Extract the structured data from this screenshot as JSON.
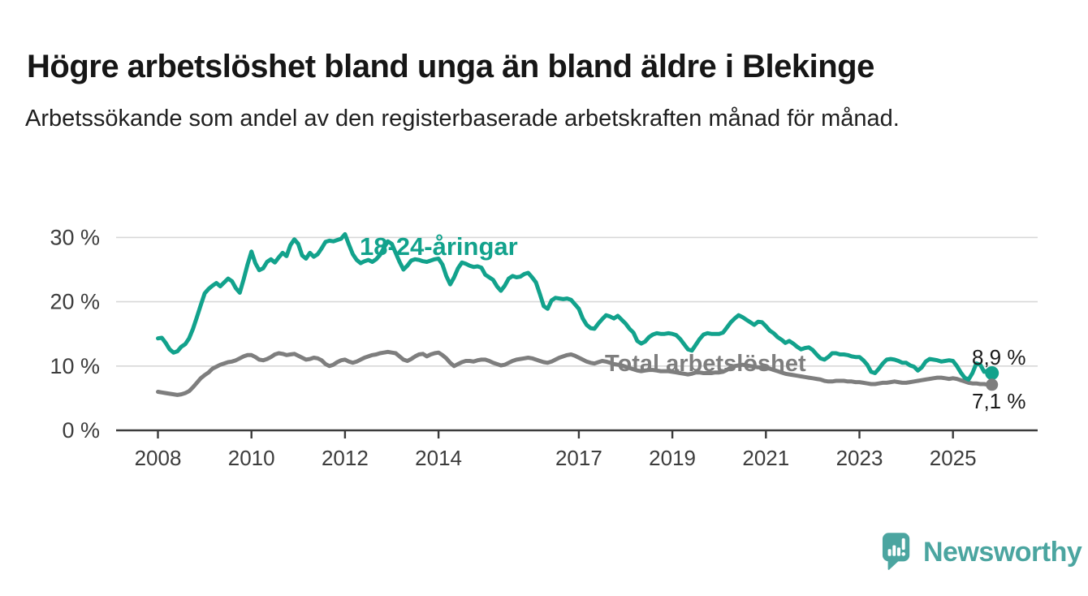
{
  "header": {
    "title": "Högre arbetslöshet bland unga än bland äldre i Blekinge",
    "subtitle": "Arbetssökande som andel av den registerbaserade arbetskraften månad för månad."
  },
  "chart_data": {
    "type": "line",
    "title": "Högre arbetslöshet bland unga än bland äldre i Blekinge",
    "subtitle": "Arbetssökande som andel av den registerbaserade arbetskraften månad för månad.",
    "unit": "%",
    "x_start": {
      "year": 2008,
      "month": 1
    },
    "x_end": {
      "year": 2025,
      "month": 11
    },
    "ylim": [
      0,
      32
    ],
    "grid": "horizontal",
    "y_ticks": [
      {
        "value": 0,
        "label": "0 %"
      },
      {
        "value": 10,
        "label": "10 %"
      },
      {
        "value": 20,
        "label": "20 %"
      },
      {
        "value": 30,
        "label": "30 %"
      }
    ],
    "x_ticks": [
      {
        "value": 2008,
        "label": "2008"
      },
      {
        "value": 2010,
        "label": "2010"
      },
      {
        "value": 2012,
        "label": "2012"
      },
      {
        "value": 2014,
        "label": "2014"
      },
      {
        "value": 2017,
        "label": "2017"
      },
      {
        "value": 2019,
        "label": "2019"
      },
      {
        "value": 2021,
        "label": "2021"
      },
      {
        "value": 2023,
        "label": "2023"
      },
      {
        "value": 2025,
        "label": "2025"
      }
    ],
    "series": [
      {
        "name": "18-24-åringar",
        "color": "#12a28c",
        "end_label": "8,9 %",
        "last_value": 8.9,
        "values": [
          14.3,
          14.4,
          13.6,
          12.6,
          12.1,
          12.3,
          13.0,
          13.4,
          14.3,
          15.8,
          17.6,
          19.5,
          21.3,
          22.0,
          22.5,
          22.9,
          22.4,
          23.0,
          23.6,
          23.2,
          22.1,
          21.4,
          23.5,
          25.8,
          27.8,
          26.0,
          24.9,
          25.2,
          26.2,
          26.6,
          26.1,
          26.9,
          27.6,
          27.1,
          28.8,
          29.7,
          29.0,
          27.2,
          26.7,
          27.6,
          27.0,
          27.4,
          28.3,
          29.3,
          29.5,
          29.4,
          29.6,
          29.8,
          30.5,
          28.9,
          27.4,
          26.5,
          26.0,
          26.3,
          26.5,
          26.2,
          26.6,
          27.3,
          28.4,
          29.4,
          29.0,
          27.6,
          26.2,
          25.0,
          25.6,
          26.4,
          26.6,
          26.5,
          26.3,
          26.2,
          26.4,
          26.6,
          26.7,
          25.8,
          24.0,
          22.7,
          23.8,
          25.2,
          26.1,
          25.9,
          25.6,
          25.4,
          25.5,
          25.3,
          24.2,
          23.8,
          23.4,
          22.4,
          21.7,
          22.5,
          23.6,
          24.0,
          23.8,
          23.9,
          24.3,
          24.5,
          23.8,
          23.0,
          21.2,
          19.3,
          18.9,
          20.2,
          20.6,
          20.5,
          20.4,
          20.5,
          20.3,
          19.6,
          18.9,
          17.4,
          16.4,
          15.9,
          15.8,
          16.6,
          17.3,
          17.9,
          17.7,
          17.4,
          17.8,
          17.2,
          16.6,
          15.8,
          15.2,
          13.9,
          13.5,
          13.8,
          14.5,
          14.9,
          15.1,
          15.0,
          15.0,
          15.1,
          15.0,
          14.8,
          14.2,
          13.4,
          12.6,
          12.4,
          13.3,
          14.2,
          14.9,
          15.1,
          15.0,
          15.0,
          15.0,
          15.2,
          16.0,
          16.8,
          17.4,
          17.9,
          17.6,
          17.2,
          16.8,
          16.4,
          16.9,
          16.8,
          16.2,
          15.5,
          15.1,
          14.5,
          14.1,
          13.6,
          13.9,
          13.5,
          13.0,
          12.6,
          12.8,
          12.9,
          12.5,
          11.8,
          11.2,
          11.0,
          11.4,
          12.0,
          12.0,
          11.8,
          11.8,
          11.7,
          11.5,
          11.4,
          11.4,
          10.9,
          10.2,
          9.1,
          8.9,
          9.6,
          10.4,
          11.0,
          11.1,
          11.0,
          10.8,
          10.5,
          10.5,
          10.1,
          9.9,
          9.3,
          9.8,
          10.7,
          11.1,
          11.0,
          10.9,
          10.7,
          10.8,
          10.9,
          10.8,
          10.0,
          9.0,
          8.2,
          7.9,
          8.9,
          10.4,
          10.2,
          9.1,
          9.3,
          8.9
        ]
      },
      {
        "name": "Total arbetslöshet",
        "color": "#7e7e7e",
        "end_label": "7,1 %",
        "last_value": 7.1,
        "values": [
          6.0,
          5.9,
          5.8,
          5.7,
          5.6,
          5.5,
          5.6,
          5.8,
          6.1,
          6.7,
          7.4,
          8.1,
          8.6,
          9.0,
          9.6,
          9.9,
          10.2,
          10.4,
          10.6,
          10.7,
          10.9,
          11.2,
          11.5,
          11.7,
          11.7,
          11.4,
          11.0,
          10.9,
          11.1,
          11.4,
          11.8,
          12.0,
          11.9,
          11.7,
          11.8,
          11.9,
          11.6,
          11.3,
          11.0,
          11.1,
          11.3,
          11.2,
          10.9,
          10.3,
          10.0,
          10.2,
          10.6,
          10.9,
          11.0,
          10.7,
          10.5,
          10.7,
          11.0,
          11.3,
          11.5,
          11.7,
          11.8,
          12.0,
          12.1,
          12.2,
          12.1,
          12.0,
          11.5,
          11.0,
          10.8,
          11.1,
          11.5,
          11.8,
          11.9,
          11.5,
          11.8,
          12.0,
          12.1,
          11.7,
          11.2,
          10.5,
          10.0,
          10.3,
          10.6,
          10.8,
          10.8,
          10.7,
          10.9,
          11.0,
          11.0,
          10.8,
          10.5,
          10.3,
          10.1,
          10.2,
          10.5,
          10.8,
          11.0,
          11.1,
          11.2,
          11.3,
          11.2,
          11.0,
          10.8,
          10.6,
          10.5,
          10.7,
          11.0,
          11.3,
          11.5,
          11.7,
          11.8,
          11.6,
          11.3,
          11.0,
          10.7,
          10.5,
          10.4,
          10.6,
          10.8,
          10.7,
          10.5,
          10.3,
          10.2,
          10.1,
          9.9,
          9.7,
          9.5,
          9.3,
          9.2,
          9.3,
          9.4,
          9.4,
          9.3,
          9.2,
          9.2,
          9.2,
          9.1,
          9.0,
          8.9,
          8.8,
          8.7,
          8.8,
          9.0,
          9.0,
          8.9,
          8.9,
          8.9,
          9.0,
          9.0,
          9.1,
          9.4,
          9.8,
          10.0,
          10.1,
          10.2,
          10.1,
          10.0,
          9.9,
          9.8,
          9.8,
          9.7,
          9.6,
          9.4,
          9.2,
          9.0,
          8.8,
          8.7,
          8.6,
          8.5,
          8.4,
          8.3,
          8.2,
          8.1,
          8.0,
          7.9,
          7.7,
          7.6,
          7.6,
          7.7,
          7.7,
          7.7,
          7.6,
          7.6,
          7.5,
          7.5,
          7.4,
          7.3,
          7.2,
          7.2,
          7.3,
          7.4,
          7.4,
          7.5,
          7.6,
          7.5,
          7.4,
          7.4,
          7.5,
          7.6,
          7.7,
          7.8,
          7.9,
          8.0,
          8.1,
          8.2,
          8.2,
          8.1,
          8.0,
          8.1,
          8.0,
          7.8,
          7.6,
          7.4,
          7.3,
          7.3,
          7.2,
          7.2,
          7.1,
          7.1
        ]
      }
    ],
    "legend_position": "inline-labels"
  },
  "footer": {
    "brand": "Newsworthy"
  },
  "colors": {
    "accent_teal": "#12a28c",
    "series_gray": "#7e7e7e",
    "gridline": "#d8d8d8",
    "axis": "#3b3b3b",
    "tick_label": "#3c3c3c",
    "title_text": "#161616",
    "logo_teal": "#4ba5a0"
  }
}
